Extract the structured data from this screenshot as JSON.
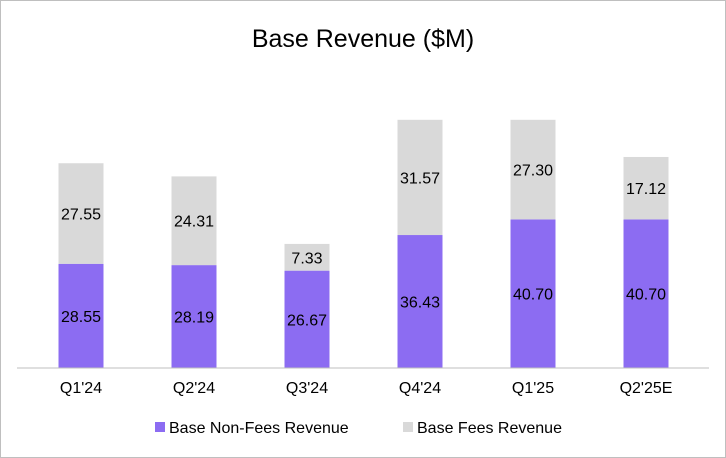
{
  "chart_data": {
    "type": "bar",
    "stacked": true,
    "title": "Base Revenue ($M)",
    "xlabel": "",
    "ylabel": "",
    "ylim": [
      0,
      72
    ],
    "grid": false,
    "legend_position": "bottom",
    "categories": [
      "Q1'24",
      "Q2'24",
      "Q3'24",
      "Q4'24",
      "Q1'25",
      "Q2'25E"
    ],
    "series": [
      {
        "name": "Base Non-Fees Revenue",
        "color": "#8c6cf2",
        "values": [
          28.55,
          28.19,
          26.67,
          36.43,
          40.7,
          40.7
        ],
        "labels": [
          "28.55",
          "28.19",
          "26.67",
          "36.43",
          "40.70",
          "40.70"
        ]
      },
      {
        "name": "Base Fees Revenue",
        "color": "#d9d9d9",
        "values": [
          27.55,
          24.31,
          7.33,
          31.57,
          27.3,
          17.12
        ],
        "labels": [
          "27.55",
          "24.31",
          "7.33",
          "31.57",
          "27.30",
          "17.12"
        ]
      }
    ]
  }
}
